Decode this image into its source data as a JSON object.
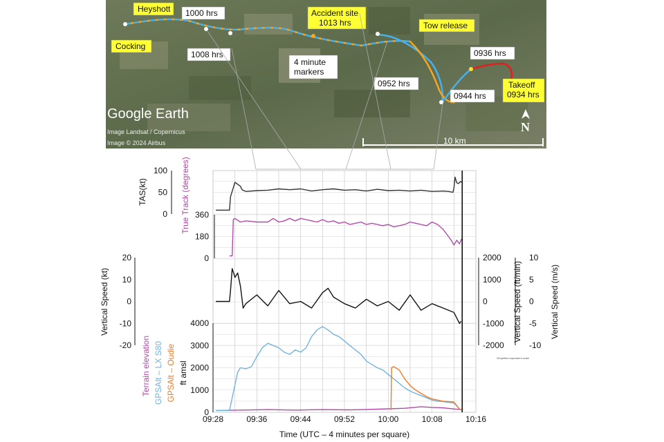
{
  "map": {
    "watermark": "Google Earth",
    "credit1": "Image Landsat / Copernicus",
    "credit2": "Image © 2024 Airbus",
    "scale_label": "10 km",
    "north_label": "N",
    "labels": {
      "heyshott": "Heyshott",
      "cocking": "Cocking",
      "h1000": "1000 hrs",
      "h1008": "1008 hrs",
      "accident1": "Accident site",
      "accident2": "1013 hrs",
      "markers1": "4 minute",
      "markers2": "markers",
      "h0952": "0952 hrs",
      "tow": "Tow release",
      "h0936": "0936 hrs",
      "h0944": "0944 hrs",
      "takeoff1": "Takeoff",
      "takeoff2": "0934 hrs"
    },
    "colors": {
      "track_blue": "#4ab0e8",
      "track_orange": "#f5a623",
      "track_red": "#e02020",
      "label_yellow": "#ffff33"
    }
  },
  "chart_data": {
    "type": "line",
    "xlabel": "Time (UTC – 4 minutes per square)",
    "x_ticks": [
      "09:28",
      "09:36",
      "09:44",
      "09:52",
      "10:00",
      "10:08",
      "10:16"
    ],
    "x_minutes": [
      0,
      48
    ],
    "accident_time_min": 45.5,
    "note": "Simplified equivalent scale",
    "panels": [
      {
        "name": "tas",
        "ylabel": "TAS(kt)",
        "ylim": [
          0,
          100
        ],
        "y_ticks": [
          "0",
          "50",
          "100"
        ],
        "series": [
          {
            "color": "#333333",
            "points": [
              [
                0.5,
                9
              ],
              [
                3,
                9
              ],
              [
                3.2,
                40
              ],
              [
                4,
                73
              ],
              [
                5,
                64
              ],
              [
                5.3,
                56
              ],
              [
                6,
                52
              ],
              [
                8,
                54
              ],
              [
                10,
                55
              ],
              [
                12,
                58
              ],
              [
                14,
                56
              ],
              [
                16,
                58
              ],
              [
                18,
                53
              ],
              [
                20,
                56
              ],
              [
                22,
                58
              ],
              [
                24,
                55
              ],
              [
                26,
                56
              ],
              [
                28,
                53
              ],
              [
                30,
                57
              ],
              [
                32,
                54
              ],
              [
                34,
                55
              ],
              [
                36,
                53
              ],
              [
                38,
                55
              ],
              [
                40,
                52
              ],
              [
                42,
                53
              ],
              [
                43,
                52
              ],
              [
                43.8,
                50
              ],
              [
                44,
                60
              ],
              [
                44.2,
                85
              ],
              [
                44.5,
                72
              ],
              [
                44.8,
                70
              ],
              [
                45.2,
                75
              ],
              [
                45.4,
                73
              ]
            ]
          }
        ]
      },
      {
        "name": "track",
        "ylabel": "True Track (degrees)",
        "ylim": [
          0,
          360
        ],
        "y_ticks": [
          "0",
          "180",
          "360"
        ],
        "series": [
          {
            "color": "#b04aa8",
            "points": [
              [
                3,
                20
              ],
              [
                3.5,
                20
              ],
              [
                3.7,
                320
              ],
              [
                4,
                330
              ],
              [
                5,
                300
              ],
              [
                6,
                310
              ],
              [
                7,
                305
              ],
              [
                8,
                300
              ],
              [
                9,
                300
              ],
              [
                10,
                300
              ],
              [
                11,
                330
              ],
              [
                12,
                300
              ],
              [
                13,
                310
              ],
              [
                14,
                330
              ],
              [
                15,
                310
              ],
              [
                16,
                330
              ],
              [
                17,
                320
              ],
              [
                18,
                310
              ],
              [
                19,
                300
              ],
              [
                20,
                320
              ],
              [
                21,
                300
              ],
              [
                22,
                310
              ],
              [
                23,
                290
              ],
              [
                24,
                300
              ],
              [
                25,
                280
              ],
              [
                26,
                290
              ],
              [
                27,
                300
              ],
              [
                28,
                280
              ],
              [
                29,
                290
              ],
              [
                30,
                280
              ],
              [
                31,
                270
              ],
              [
                32,
                280
              ],
              [
                33,
                260
              ],
              [
                34,
                270
              ],
              [
                35,
                280
              ],
              [
                36,
                300
              ],
              [
                37,
                290
              ],
              [
                38,
                280
              ],
              [
                39,
                270
              ],
              [
                40,
                300
              ],
              [
                41,
                280
              ],
              [
                42,
                240
              ],
              [
                43,
                180
              ],
              [
                43.5,
                150
              ],
              [
                44,
                110
              ],
              [
                44.5,
                150
              ],
              [
                45,
                120
              ],
              [
                45.4,
                160
              ]
            ]
          }
        ]
      },
      {
        "name": "vs",
        "ylabel_left": "Vertical Speed (kt)",
        "ylabel_right1": "Vertical Speed (ft/min)",
        "ylabel_right2": "Vertical Speed (m/s)",
        "ylim": [
          -20,
          20
        ],
        "y_ticks_left": [
          "-20",
          "-10",
          "0",
          "10",
          "20"
        ],
        "y_ticks_right1": [
          "-2000",
          "-1000",
          "0",
          "1000",
          "2000"
        ],
        "y_ticks_right2": [
          "-10",
          "-5",
          "0",
          "5",
          "10"
        ],
        "series": [
          {
            "color": "#111111",
            "points": [
              [
                0.5,
                0
              ],
              [
                3,
                0
              ],
              [
                3.2,
                5
              ],
              [
                3.5,
                15
              ],
              [
                4,
                11
              ],
              [
                4.5,
                13
              ],
              [
                5,
                7
              ],
              [
                5.5,
                -3
              ],
              [
                6,
                -1
              ],
              [
                8,
                3
              ],
              [
                10,
                -2
              ],
              [
                12,
                5
              ],
              [
                14,
                -1
              ],
              [
                16,
                0
              ],
              [
                18,
                -3
              ],
              [
                20,
                4
              ],
              [
                21,
                6
              ],
              [
                22,
                2
              ],
              [
                24,
                -1
              ],
              [
                26,
                -3
              ],
              [
                28,
                1
              ],
              [
                30,
                -2
              ],
              [
                32,
                0
              ],
              [
                34,
                -4
              ],
              [
                36,
                3
              ],
              [
                38,
                -4
              ],
              [
                40,
                -1
              ],
              [
                42,
                -3
              ],
              [
                44,
                -5
              ],
              [
                45,
                -10
              ],
              [
                45.3,
                -9
              ]
            ]
          }
        ]
      },
      {
        "name": "alt",
        "ylabel_left1": "Terrain elevation",
        "ylabel_left2": "GPSAlt – LX S80",
        "ylabel_left3": "GPSAlt – Oudie",
        "ylabel_left4": "ft amsl",
        "ylim": [
          0,
          4000
        ],
        "y_ticks": [
          "0",
          "1000",
          "2000",
          "3000",
          "4000"
        ],
        "series": [
          {
            "name": "Terrain elevation",
            "color": "#b04aa8",
            "points": [
              [
                0.5,
                80
              ],
              [
                5,
                100
              ],
              [
                10,
                120
              ],
              [
                15,
                100
              ],
              [
                20,
                120
              ],
              [
                25,
                110
              ],
              [
                30,
                140
              ],
              [
                35,
                180
              ],
              [
                38,
                250
              ],
              [
                40,
                220
              ],
              [
                42,
                200
              ],
              [
                44,
                150
              ],
              [
                45.4,
                120
              ]
            ]
          },
          {
            "name": "GPSAlt – LX S80",
            "color": "#6fb4e0",
            "points": [
              [
                0.5,
                80
              ],
              [
                3,
                80
              ],
              [
                4.5,
                1800
              ],
              [
                5,
                2000
              ],
              [
                6,
                1950
              ],
              [
                7,
                2050
              ],
              [
                8,
                2500
              ],
              [
                9,
                2900
              ],
              [
                10,
                3100
              ],
              [
                11,
                3000
              ],
              [
                12,
                2900
              ],
              [
                13,
                2700
              ],
              [
                14,
                2600
              ],
              [
                15,
                2800
              ],
              [
                16,
                2700
              ],
              [
                17,
                2900
              ],
              [
                18,
                3400
              ],
              [
                19,
                3700
              ],
              [
                20,
                3850
              ],
              [
                21,
                3700
              ],
              [
                22,
                3500
              ],
              [
                23,
                3400
              ],
              [
                24,
                3200
              ],
              [
                25,
                3000
              ],
              [
                26,
                2800
              ],
              [
                27,
                2600
              ],
              [
                28,
                2300
              ],
              [
                29,
                2150
              ],
              [
                30,
                2000
              ],
              [
                31,
                1900
              ],
              [
                32,
                1700
              ],
              [
                33,
                1500
              ],
              [
                34,
                1300
              ],
              [
                35,
                1100
              ],
              [
                36,
                950
              ],
              [
                37,
                850
              ],
              [
                38,
                750
              ],
              [
                39,
                650
              ],
              [
                40,
                550
              ],
              [
                41,
                500
              ],
              [
                42,
                480
              ],
              [
                43,
                450
              ],
              [
                44,
                420
              ],
              [
                45,
                150
              ],
              [
                45.3,
                120
              ]
            ]
          },
          {
            "name": "GPSAlt – Oudie",
            "color": "#f07b2a",
            "points": [
              [
                32.5,
                100
              ],
              [
                32.6,
                2000
              ],
              [
                33,
                2050
              ],
              [
                34,
                1900
              ],
              [
                35,
                1500
              ],
              [
                36,
                1200
              ],
              [
                37,
                1000
              ],
              [
                38,
                850
              ],
              [
                39,
                700
              ],
              [
                40,
                600
              ],
              [
                41,
                550
              ],
              [
                42,
                500
              ],
              [
                43,
                480
              ],
              [
                44,
                460
              ],
              [
                45,
                150
              ],
              [
                45.3,
                120
              ]
            ]
          }
        ]
      }
    ]
  }
}
